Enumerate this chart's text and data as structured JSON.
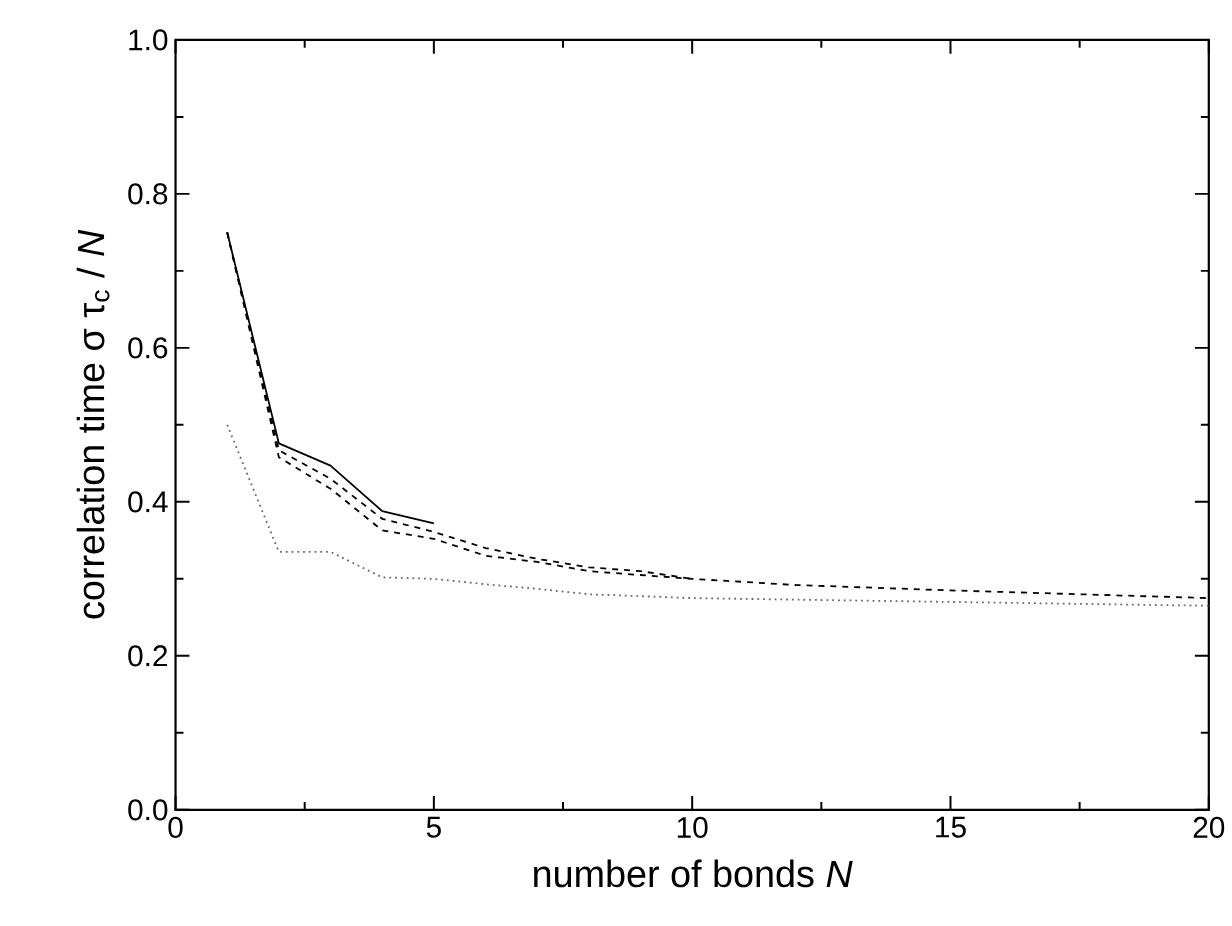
{
  "chart_data": {
    "type": "line",
    "xlabel": "number of bonds *N*",
    "ylabel": "correlation time  σ τ$_{c}$ / *N*",
    "xlim": [
      0,
      20
    ],
    "ylim": [
      0,
      1
    ],
    "xticks": [
      0,
      5,
      10,
      15,
      20
    ],
    "yticks": [
      {
        "value": 0,
        "label": "0.0"
      },
      {
        "value": 0.2,
        "label": "0.2"
      },
      {
        "value": 0.4,
        "label": "0.4"
      },
      {
        "value": 0.6,
        "label": "0.6"
      },
      {
        "value": 0.8,
        "label": "0.8"
      },
      {
        "value": 1,
        "label": "1.0"
      }
    ],
    "grid": false,
    "marker": "none",
    "series": [
      {
        "color": "#000000",
        "line_style": "solid",
        "x": [
          1,
          2,
          3,
          4,
          5
        ],
        "values": [
          0.75,
          0.476,
          0.447,
          0.388,
          0.372
        ]
      },
      {
        "color": "#000000",
        "line_style": "dashed",
        "x": [
          1,
          2,
          3,
          4,
          5,
          6,
          7,
          8,
          9,
          10
        ],
        "values": [
          0.75,
          0.467,
          0.43,
          0.378,
          0.361,
          0.34,
          0.326,
          0.315,
          0.31,
          0.3
        ]
      },
      {
        "color": "#000000",
        "line_style": "dashed",
        "x": [
          1,
          2,
          3,
          4,
          5,
          6,
          7,
          8,
          9,
          10,
          12,
          15,
          20
        ],
        "values": [
          0.75,
          0.458,
          0.417,
          0.363,
          0.352,
          0.33,
          0.322,
          0.31,
          0.305,
          0.3,
          0.292,
          0.285,
          0.275
        ]
      },
      {
        "color": "#666666",
        "line_style": "dotted",
        "x": [
          1,
          2,
          3,
          4,
          5,
          6,
          7,
          8,
          10,
          15,
          20
        ],
        "values": [
          0.5,
          0.335,
          0.335,
          0.302,
          0.3,
          0.293,
          0.287,
          0.28,
          0.275,
          0.27,
          0.265
        ]
      }
    ]
  }
}
